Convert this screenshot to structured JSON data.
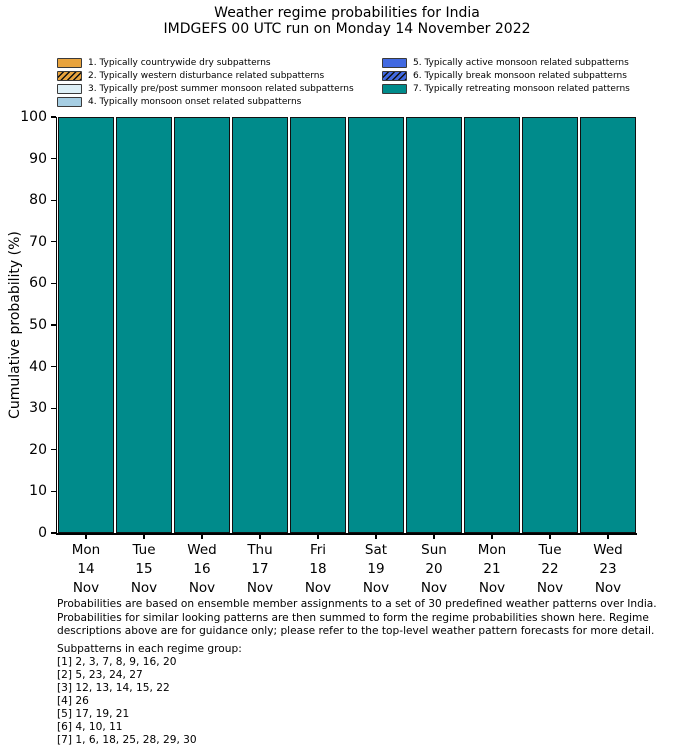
{
  "header": {
    "title": "Weather regime probabilities for India",
    "subtitle": "IMDGEFS 00 UTC run on Monday 14 November 2022"
  },
  "legend": {
    "items": [
      {
        "label": "1. Typically countrywide dry subpatterns",
        "color": "#e8a33d",
        "hatch": false
      },
      {
        "label": "2. Typically western disturbance related subpatterns",
        "color": "#e8a33d",
        "hatch": true
      },
      {
        "label": "3. Typically pre/post summer monsoon related subpatterns",
        "color": "#def0f7",
        "hatch": false
      },
      {
        "label": "4. Typically monsoon onset related subpatterns",
        "color": "#a6cee3",
        "hatch": false
      },
      {
        "label": "5. Typically active monsoon related subpatterns",
        "color": "#4169e1",
        "hatch": false
      },
      {
        "label": "6. Typically break monsoon related subpatterns",
        "color": "#4169e1",
        "hatch": true
      },
      {
        "label": "7. Typically retreating monsoon related patterns",
        "color": "#008b8b",
        "hatch": false
      }
    ]
  },
  "chart_data": {
    "type": "bar",
    "stacked": true,
    "title": "Weather regime probabilities for India",
    "subtitle": "IMDGEFS 00 UTC run on Monday 14 November 2022",
    "xlabel": "",
    "ylabel": "Cumulative probability (%)",
    "ylim": [
      0,
      100
    ],
    "ytick_step": 10,
    "grid": false,
    "legend_position": "top",
    "bar_edge_color": "#111111",
    "categories": [
      [
        "Mon",
        "14",
        "Nov"
      ],
      [
        "Tue",
        "15",
        "Nov"
      ],
      [
        "Wed",
        "16",
        "Nov"
      ],
      [
        "Thu",
        "17",
        "Nov"
      ],
      [
        "Fri",
        "18",
        "Nov"
      ],
      [
        "Sat",
        "19",
        "Nov"
      ],
      [
        "Sun",
        "20",
        "Nov"
      ],
      [
        "Mon",
        "21",
        "Nov"
      ],
      [
        "Tue",
        "22",
        "Nov"
      ],
      [
        "Wed",
        "23",
        "Nov"
      ]
    ],
    "series": [
      {
        "name": "1. Typically countrywide dry subpatterns",
        "color": "#e8a33d",
        "hatch": false,
        "values": [
          0,
          0,
          0,
          0,
          0,
          0,
          0,
          0,
          0,
          0
        ]
      },
      {
        "name": "2. Typically western disturbance related subpatterns",
        "color": "#e8a33d",
        "hatch": true,
        "values": [
          0,
          0,
          0,
          0,
          0,
          0,
          0,
          0,
          0,
          0
        ]
      },
      {
        "name": "3. Typically pre/post summer monsoon related subpatterns",
        "color": "#def0f7",
        "hatch": false,
        "values": [
          0,
          0,
          0,
          0,
          0,
          0,
          0,
          0,
          0,
          0
        ]
      },
      {
        "name": "4. Typically monsoon onset related subpatterns",
        "color": "#a6cee3",
        "hatch": false,
        "values": [
          0,
          0,
          0,
          0,
          0,
          0,
          0,
          0,
          0,
          0
        ]
      },
      {
        "name": "5. Typically active monsoon related subpatterns",
        "color": "#4169e1",
        "hatch": false,
        "values": [
          0,
          0,
          0,
          0,
          0,
          0,
          0,
          0,
          0,
          0
        ]
      },
      {
        "name": "6. Typically break monsoon related subpatterns",
        "color": "#4169e1",
        "hatch": true,
        "values": [
          0,
          0,
          0,
          0,
          0,
          0,
          0,
          0,
          0,
          0
        ]
      },
      {
        "name": "7. Typically retreating monsoon related patterns",
        "color": "#008b8b",
        "hatch": false,
        "values": [
          100,
          100,
          100,
          100,
          100,
          100,
          100,
          100,
          100,
          100
        ]
      }
    ]
  },
  "footer": {
    "lines": [
      "Probabilities are based on ensemble member assignments to a set of 30 predefined weather patterns over India.",
      "Probabilities for similar looking patterns are then summed to form the regime probabilities shown here. Regime",
      "descriptions above are for guidance only; please refer to the top-level weather pattern forecasts for more detail."
    ]
  },
  "subpatterns": {
    "heading": "Subpatterns in each regime group:",
    "lines": [
      "[1] 2, 3, 7, 8, 9, 16, 20",
      "[2] 5, 23, 24, 27",
      "[3] 12, 13, 14, 15, 22",
      "[4] 26",
      "[5] 17, 19, 21",
      "[6] 4, 10, 11",
      "[7] 1, 6, 18, 25, 28, 29, 30"
    ]
  }
}
